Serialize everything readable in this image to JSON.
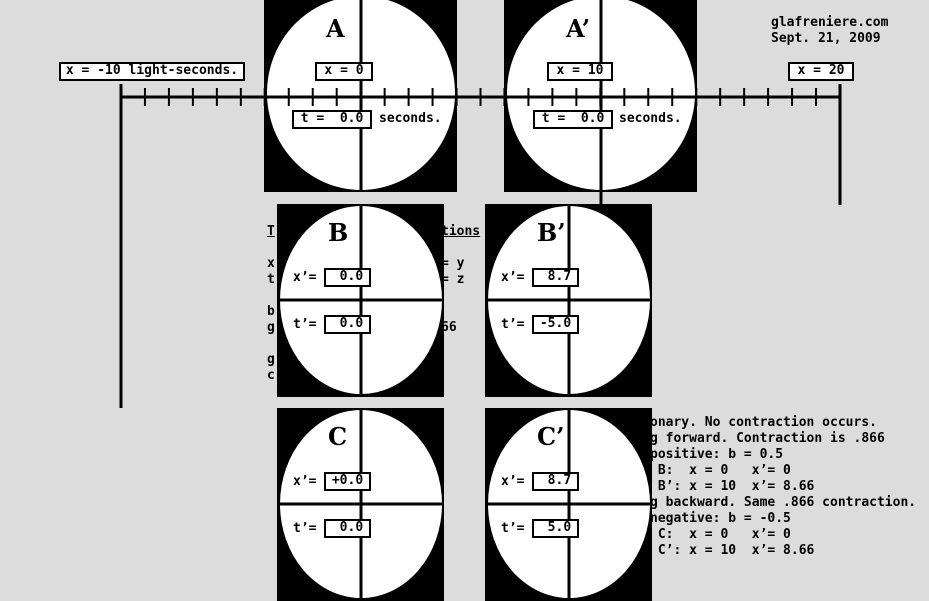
{
  "credit": {
    "site": "glafreniere.com",
    "date": "Sept. 21, 2009"
  },
  "ruler": {
    "labels": [
      "x = -10 light-seconds.",
      "x = 0",
      "x = 10",
      "x = 20"
    ]
  },
  "panels": {
    "A": {
      "letter": "A",
      "t_value": "t =  0.0",
      "unit": "seconds."
    },
    "A2": {
      "letter": "A’",
      "t_value": "t =  0.0",
      "unit": "seconds."
    },
    "B": {
      "letter": "B",
      "x_label": "x’=",
      "x_value": " 0.0",
      "t_label": "t’=",
      "t_value": " 0.0"
    },
    "B2": {
      "letter": "B’",
      "x_label": "x’=",
      "x_value": " 8.7",
      "t_label": "t’=",
      "t_value": "-5.0"
    },
    "C": {
      "letter": "C",
      "x_label": "x’=",
      "x_value": "+0.0",
      "t_label": "t’=",
      "t_value": " 0.0"
    },
    "C2": {
      "letter": "C’",
      "x_label": "x’=",
      "x_value": " 8.7",
      "t_label": "t’=",
      "t_value": " 5.0"
    }
  },
  "hidden_text": {
    "title_fragment_left": "T",
    "title_fragment_right": "tions",
    "row1_left": "x",
    "row1_right": "= y",
    "row2_left": "t",
    "row2_right": "= z",
    "row3_left": "b",
    "row4_left": "g",
    "row4_right": "66",
    "row5_left": "g",
    "row6_left": "c"
  },
  "notes": [
    "onary. No contraction occurs.",
    "",
    "g forward. Contraction is .866",
    "positive: b = 0.5",
    " B:  x = 0   x’= 0",
    " B’: x = 10  x’= 8.66",
    "",
    "g backward. Same .866 contraction.",
    "negative: b = -0.5",
    " C:  x = 0   x’= 0",
    " C’: x = 10  x’= 8.66"
  ]
}
